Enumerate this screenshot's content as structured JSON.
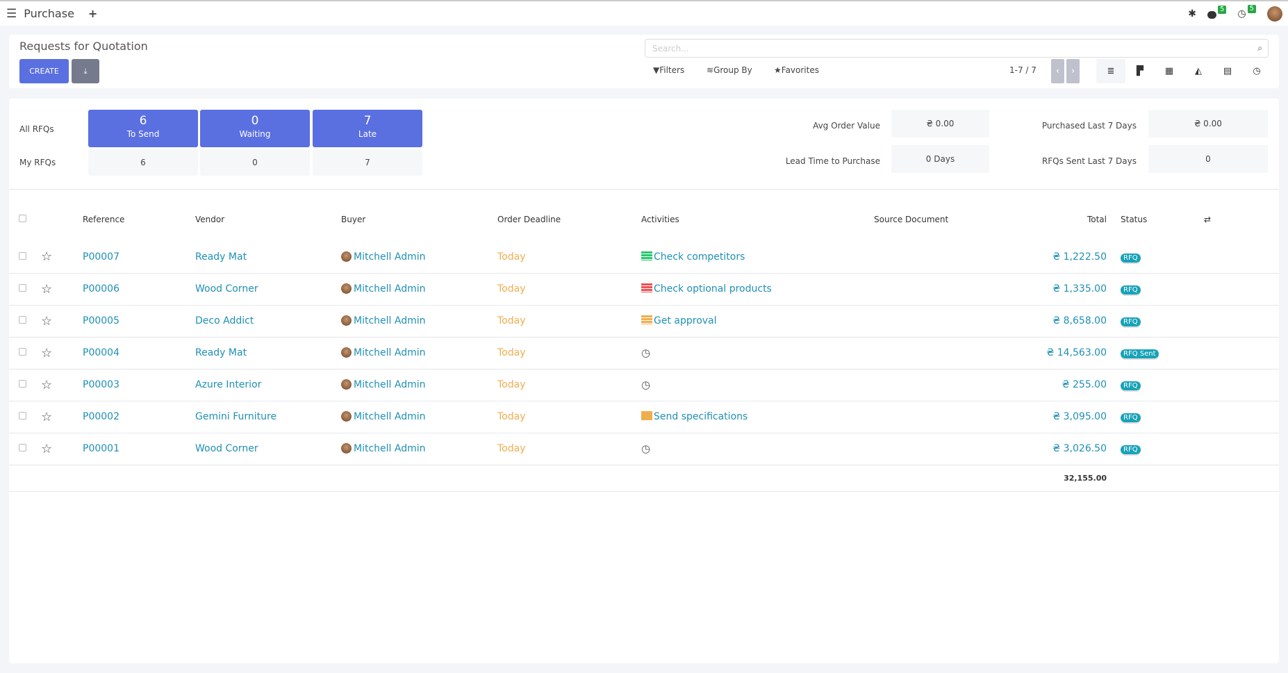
{
  "topbar": {
    "app": "Purchase",
    "messages_count": "5",
    "activities_count": "5"
  },
  "control": {
    "title": "Requests for Quotation",
    "create_label": "CREATE",
    "search_placeholder": "Search...",
    "filters": "Filters",
    "group_by": "Group By",
    "favorites": "Favorites",
    "pager": "1-7 / 7"
  },
  "dashboard": {
    "all_label": "All RFQs",
    "my_label": "My RFQs",
    "tiles": [
      {
        "count": "6",
        "label": "To Send",
        "my": "6"
      },
      {
        "count": "0",
        "label": "Waiting",
        "my": "0"
      },
      {
        "count": "7",
        "label": "Late",
        "my": "7"
      }
    ],
    "stats": [
      {
        "label": "Avg Order Value",
        "value": "₴ 0.00"
      },
      {
        "label": "Purchased Last 7 Days",
        "value": "₴ 0.00"
      },
      {
        "label": "Lead Time to Purchase",
        "value": "0 Days"
      },
      {
        "label": "RFQs Sent Last 7 Days",
        "value": "0"
      }
    ]
  },
  "table": {
    "headers": {
      "reference": "Reference",
      "vendor": "Vendor",
      "buyer": "Buyer",
      "deadline": "Order Deadline",
      "activities": "Activities",
      "source": "Source Document",
      "total": "Total",
      "status": "Status"
    },
    "rows": [
      {
        "ref": "P00007",
        "vendor": "Ready Mat",
        "buyer": "Mitchell Admin",
        "deadline": "Today",
        "activity": "Check competitors",
        "activity_icon": "list-icon",
        "activity_color": "#28c76f",
        "total": "₴ 1,222.50",
        "status": "RFQ"
      },
      {
        "ref": "P00006",
        "vendor": "Wood Corner",
        "buyer": "Mitchell Admin",
        "deadline": "Today",
        "activity": "Check optional products",
        "activity_icon": "list-icon",
        "activity_color": "#ea5455",
        "total": "₴ 1,335.00",
        "status": "RFQ"
      },
      {
        "ref": "P00005",
        "vendor": "Deco Addict",
        "buyer": "Mitchell Admin",
        "deadline": "Today",
        "activity": "Get approval",
        "activity_icon": "list-icon",
        "activity_color": "#f0ad4e",
        "total": "₴ 8,658.00",
        "status": "RFQ"
      },
      {
        "ref": "P00004",
        "vendor": "Ready Mat",
        "buyer": "Mitchell Admin",
        "deadline": "Today",
        "activity": "",
        "activity_icon": "clock-icon",
        "activity_color": "#555555",
        "total": "₴ 14,563.00",
        "status": "RFQ Sent"
      },
      {
        "ref": "P00003",
        "vendor": "Azure Interior",
        "buyer": "Mitchell Admin",
        "deadline": "Today",
        "activity": "",
        "activity_icon": "clock-icon",
        "activity_color": "#555555",
        "total": "₴ 255.00",
        "status": "RFQ"
      },
      {
        "ref": "P00002",
        "vendor": "Gemini Furniture",
        "buyer": "Mitchell Admin",
        "deadline": "Today",
        "activity": "Send specifications",
        "activity_icon": "envelope-icon",
        "activity_color": "#f0ad4e",
        "total": "₴ 3,095.00",
        "status": "RFQ"
      },
      {
        "ref": "P00001",
        "vendor": "Wood Corner",
        "buyer": "Mitchell Admin",
        "deadline": "Today",
        "activity": "",
        "activity_icon": "clock-icon",
        "activity_color": "#555555",
        "total": "₴ 3,026.50",
        "status": "RFQ"
      }
    ],
    "sum_total": "32,155.00"
  },
  "colors": {
    "primary": "#5a6fe0",
    "link": "#1f8fb5",
    "status": "#17a2b8",
    "deadline": "#f0ad4e"
  }
}
